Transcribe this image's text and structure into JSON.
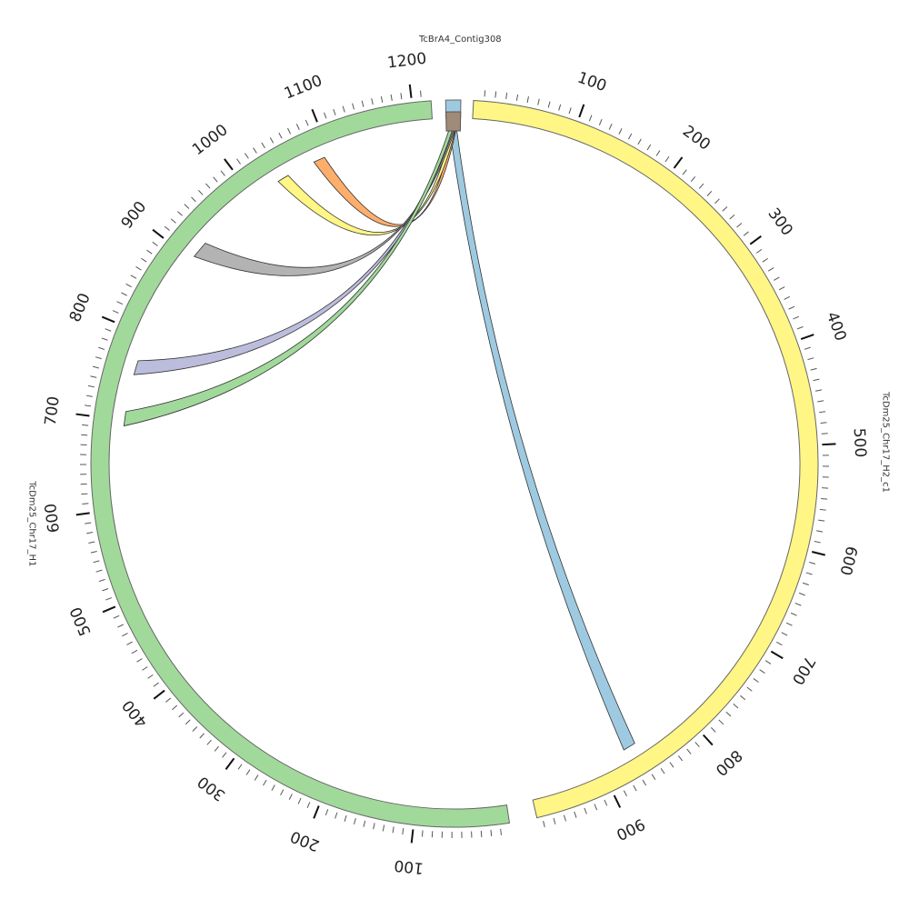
{
  "chart_data": {
    "type": "chord",
    "segments": [
      {
        "id": "h2",
        "name": "TcDm25_Chr17_H2_c1",
        "length": 975,
        "color": "#fff685",
        "ticks": [
          "100",
          "200",
          "300",
          "400",
          "500",
          "600",
          "700",
          "800",
          "900"
        ]
      },
      {
        "id": "h1",
        "name": "TcDm25_Chr17_H1",
        "length": 1220,
        "color": "#a1d99b",
        "ticks": [
          "100",
          "200",
          "300",
          "400",
          "500",
          "600",
          "700",
          "800",
          "900",
          "1000",
          "1100",
          "1200"
        ]
      },
      {
        "id": "contig",
        "name": "TcBrA4_Contig308",
        "length": 10,
        "color": "#9ecae1",
        "ticks": []
      }
    ],
    "links": [
      {
        "color": "#9ecae1",
        "target_segment": "TcDm25_Chr17_H2_c1",
        "target_range": [
          795,
          810
        ]
      },
      {
        "color": "#fdae6b",
        "target_segment": "TcDm25_Chr17_H1",
        "target_range": [
          1074,
          1085
        ]
      },
      {
        "color": "#fff685",
        "target_segment": "TcDm25_Chr17_H1",
        "target_range": [
          1030,
          1041
        ]
      },
      {
        "color": "#b3b3b3",
        "target_segment": "TcDm25_Chr17_H1",
        "target_range": [
          911,
          926
        ]
      },
      {
        "color": "#bcbddc",
        "target_segment": "TcDm25_Chr17_H1",
        "target_range": [
          772,
          785
        ]
      },
      {
        "color": "#a1d99b",
        "target_segment": "TcDm25_Chr17_H1",
        "target_range": [
          722,
          737
        ]
      }
    ]
  }
}
